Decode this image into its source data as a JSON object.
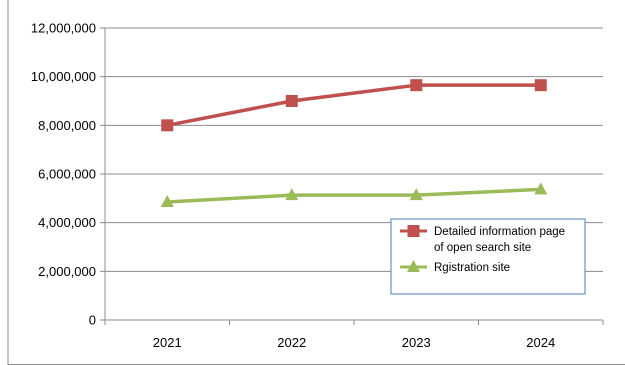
{
  "chart_data": {
    "type": "line",
    "title": "",
    "xlabel": "",
    "ylabel": "",
    "categories": [
      "2021",
      "2022",
      "2023",
      "2024"
    ],
    "ylim": [
      0,
      12000000
    ],
    "yticks": [
      0,
      2000000,
      4000000,
      6000000,
      8000000,
      10000000,
      12000000
    ],
    "ytick_labels": [
      "0",
      "2,000,000",
      "4,000,000",
      "6,000,000",
      "8,000,000",
      "10,000,000",
      "12,000,000"
    ],
    "grid": true,
    "legend_position": "bottom-right",
    "series": [
      {
        "name": "Detailed information page of open search site",
        "legend_lines": [
          "Detailed information page",
          "of open search site"
        ],
        "values": [
          8000000,
          9000000,
          9650000,
          9650000
        ],
        "color": "#c0504d",
        "marker": "square"
      },
      {
        "name": "Rgistration site",
        "legend_lines": [
          "Rgistration site"
        ],
        "values": [
          4850000,
          5130000,
          5130000,
          5370000
        ],
        "color": "#9bbb59",
        "marker": "triangle"
      }
    ]
  }
}
